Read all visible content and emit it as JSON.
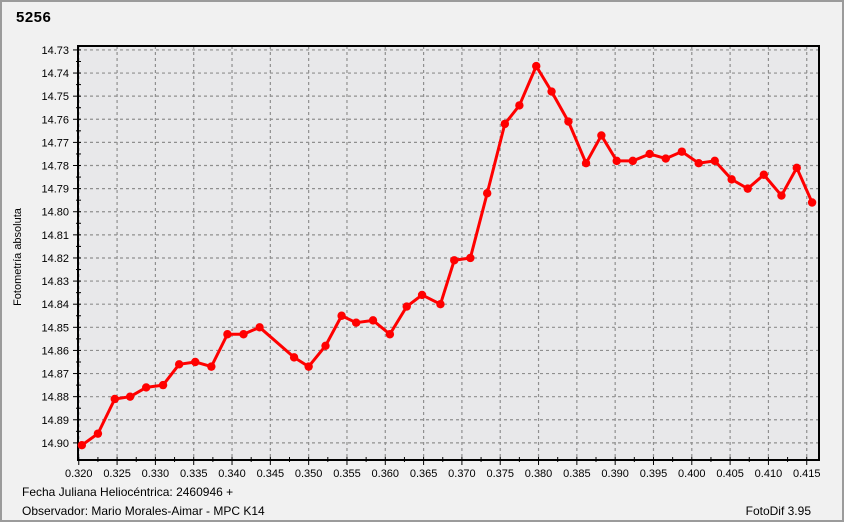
{
  "window": {
    "title": "5256",
    "background": "#f1f1f1",
    "border_color": "#9b9b9b"
  },
  "footer": {
    "line1": "Fecha Juliana Heliocéntrica: 2460946 +",
    "line2": "Observador: Mario Morales-Aimar - MPC K14",
    "app_version": "FotoDif 3.95"
  },
  "chart_data": {
    "type": "line",
    "title": "5256",
    "ylabel": "Fotometría absoluta",
    "xlabel": "",
    "y_inverted": true,
    "grid": "dashed",
    "legend": "none",
    "series_color": "#ff0000",
    "plot_bg": "#e8e8ea",
    "grid_color": "#8f8f8f",
    "axis_color": "#000000",
    "xlim": [
      0.3199,
      0.4166
    ],
    "ylim": [
      14.7283,
      14.9074
    ],
    "x_ticks": [
      0.32,
      0.325,
      0.33,
      0.335,
      0.34,
      0.345,
      0.35,
      0.355,
      0.36,
      0.365,
      0.37,
      0.375,
      0.38,
      0.385,
      0.39,
      0.395,
      0.4,
      0.405,
      0.41,
      0.415
    ],
    "y_ticks": [
      14.73,
      14.74,
      14.75,
      14.76,
      14.77,
      14.78,
      14.79,
      14.8,
      14.81,
      14.82,
      14.83,
      14.84,
      14.85,
      14.86,
      14.87,
      14.88,
      14.89,
      14.9
    ],
    "x_minor_step": 0.0025,
    "y_minor_step": 0.005,
    "points": [
      [
        0.3204,
        14.901
      ],
      [
        0.3225,
        14.896
      ],
      [
        0.3247,
        14.881
      ],
      [
        0.3267,
        14.88
      ],
      [
        0.3288,
        14.876
      ],
      [
        0.331,
        14.875
      ],
      [
        0.3331,
        14.866
      ],
      [
        0.3352,
        14.865
      ],
      [
        0.3373,
        14.867
      ],
      [
        0.3394,
        14.853
      ],
      [
        0.3415,
        14.853
      ],
      [
        0.3436,
        14.85
      ],
      [
        0.3481,
        14.863
      ],
      [
        0.35,
        14.867
      ],
      [
        0.3522,
        14.858
      ],
      [
        0.3543,
        14.845
      ],
      [
        0.3562,
        14.848
      ],
      [
        0.3584,
        14.847
      ],
      [
        0.3606,
        14.853
      ],
      [
        0.3628,
        14.841
      ],
      [
        0.3648,
        14.836
      ],
      [
        0.3672,
        14.84
      ],
      [
        0.369,
        14.821
      ],
      [
        0.3711,
        14.82
      ],
      [
        0.3733,
        14.792
      ],
      [
        0.3756,
        14.762
      ],
      [
        0.3775,
        14.754
      ],
      [
        0.3797,
        14.737
      ],
      [
        0.3817,
        14.748
      ],
      [
        0.3839,
        14.761
      ],
      [
        0.3862,
        14.779
      ],
      [
        0.3882,
        14.767
      ],
      [
        0.3902,
        14.778
      ],
      [
        0.3923,
        14.778
      ],
      [
        0.3945,
        14.775
      ],
      [
        0.3966,
        14.777
      ],
      [
        0.3987,
        14.774
      ],
      [
        0.4009,
        14.779
      ],
      [
        0.403,
        14.778
      ],
      [
        0.4052,
        14.786
      ],
      [
        0.4073,
        14.79
      ],
      [
        0.4094,
        14.784
      ],
      [
        0.4117,
        14.793
      ],
      [
        0.4137,
        14.781
      ],
      [
        0.4157,
        14.796
      ]
    ]
  }
}
